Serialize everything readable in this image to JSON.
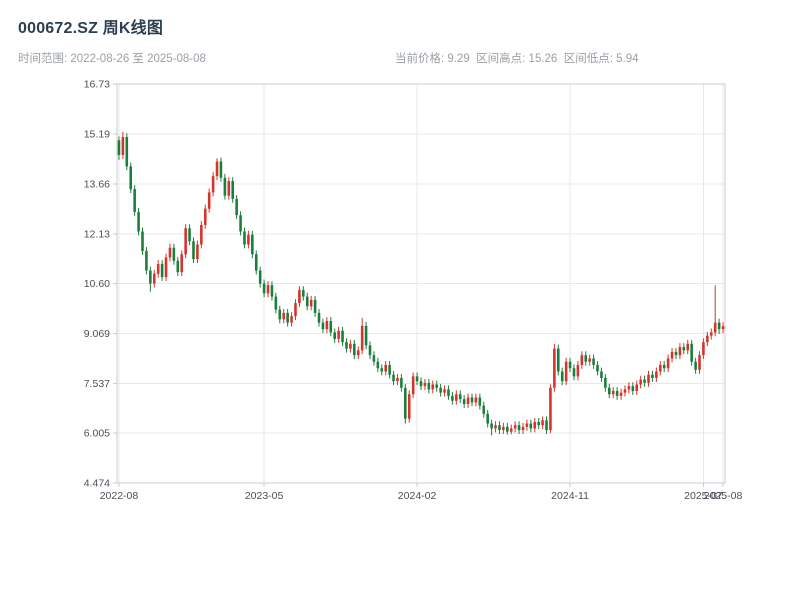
{
  "header": {
    "title": "000672.SZ 周K线图",
    "subtitle_left": "时间范围: 2022-08-26 至 2025-08-08",
    "subtitle_right": "当前价格: 9.29  区间高点: 15.26  区间低点: 5.94"
  },
  "chart_data": {
    "type": "candlestick",
    "symbol": "000672.SZ",
    "interval": "weekly",
    "start_date": "2022-08-26",
    "end_date": "2025-08-08",
    "current_price": 9.29,
    "range_high": 15.26,
    "range_low": 5.94,
    "ylim": [
      4.474,
      16.73
    ],
    "y_ticks": [
      "4.474",
      "6.005",
      "7.537",
      "9.069",
      "10.60",
      "12.13",
      "13.66",
      "15.19",
      "16.73"
    ],
    "x_ticks": [
      {
        "i": 0,
        "label": "2022-08"
      },
      {
        "i": 37,
        "label": "2023-05"
      },
      {
        "i": 76,
        "label": "2024-02"
      },
      {
        "i": 115,
        "label": "2024-11"
      },
      {
        "i": 149,
        "label": "2025-07"
      },
      {
        "i": 154,
        "label": "2025-08"
      }
    ],
    "colors": {
      "up": "#d6342b",
      "down": "#1a7f3c",
      "grid": "#e8e8ec",
      "border": "#c9ced4",
      "tick_text": "#4b4f58"
    },
    "grid": true,
    "legend": "none",
    "candles": [
      [
        15.0,
        15.12,
        14.4,
        14.55
      ],
      [
        14.55,
        15.26,
        14.43,
        15.1
      ],
      [
        15.1,
        15.22,
        14.08,
        14.2
      ],
      [
        14.2,
        14.32,
        13.38,
        13.5
      ],
      [
        13.5,
        13.62,
        12.68,
        12.8
      ],
      [
        12.8,
        12.92,
        12.08,
        12.2
      ],
      [
        12.2,
        12.32,
        11.48,
        11.6
      ],
      [
        11.6,
        11.72,
        10.88,
        11.0
      ],
      [
        11.0,
        11.12,
        10.35,
        10.6
      ],
      [
        10.6,
        11.02,
        10.48,
        10.9
      ],
      [
        10.9,
        11.32,
        10.78,
        11.2
      ],
      [
        11.2,
        11.32,
        10.68,
        10.8
      ],
      [
        10.8,
        11.52,
        10.68,
        11.4
      ],
      [
        11.4,
        11.82,
        11.28,
        11.7
      ],
      [
        11.7,
        11.82,
        11.18,
        11.3
      ],
      [
        11.3,
        11.42,
        10.83,
        10.95
      ],
      [
        10.95,
        11.62,
        10.83,
        11.5
      ],
      [
        11.5,
        12.42,
        11.38,
        12.3
      ],
      [
        12.3,
        12.42,
        11.78,
        11.9
      ],
      [
        11.9,
        12.02,
        11.23,
        11.35
      ],
      [
        11.35,
        11.92,
        11.23,
        11.8
      ],
      [
        11.8,
        12.52,
        11.68,
        12.4
      ],
      [
        12.4,
        13.02,
        12.28,
        12.9
      ],
      [
        12.9,
        13.52,
        12.78,
        13.4
      ],
      [
        13.4,
        14.02,
        13.28,
        13.9
      ],
      [
        13.9,
        14.45,
        13.78,
        14.35
      ],
      [
        14.35,
        14.47,
        13.73,
        13.85
      ],
      [
        13.85,
        13.97,
        13.18,
        13.3
      ],
      [
        13.3,
        13.87,
        13.18,
        13.75
      ],
      [
        13.75,
        13.87,
        13.08,
        13.2
      ],
      [
        13.2,
        13.32,
        12.58,
        12.7
      ],
      [
        12.7,
        12.82,
        12.08,
        12.2
      ],
      [
        12.2,
        12.32,
        11.68,
        11.8
      ],
      [
        11.8,
        12.22,
        11.68,
        12.1
      ],
      [
        12.1,
        12.22,
        11.38,
        11.5
      ],
      [
        11.5,
        11.62,
        10.88,
        11.0
      ],
      [
        11.0,
        11.12,
        10.48,
        10.6
      ],
      [
        10.6,
        10.72,
        10.18,
        10.3
      ],
      [
        10.3,
        10.67,
        10.18,
        10.55
      ],
      [
        10.55,
        10.67,
        10.08,
        10.2
      ],
      [
        10.2,
        10.32,
        9.68,
        9.8
      ],
      [
        9.8,
        9.92,
        9.38,
        9.5
      ],
      [
        9.5,
        9.82,
        9.38,
        9.7
      ],
      [
        9.7,
        9.82,
        9.28,
        9.4
      ],
      [
        9.4,
        9.72,
        9.28,
        9.6
      ],
      [
        9.6,
        10.12,
        9.48,
        10.0
      ],
      [
        10.0,
        10.52,
        9.88,
        10.4
      ],
      [
        10.4,
        10.52,
        10.08,
        10.2
      ],
      [
        10.2,
        10.32,
        9.78,
        9.9
      ],
      [
        9.9,
        10.22,
        9.78,
        10.1
      ],
      [
        10.1,
        10.22,
        9.58,
        9.7
      ],
      [
        9.7,
        9.82,
        9.28,
        9.4
      ],
      [
        9.4,
        9.52,
        9.08,
        9.2
      ],
      [
        9.2,
        9.57,
        9.08,
        9.45
      ],
      [
        9.45,
        9.57,
        8.98,
        9.1
      ],
      [
        9.1,
        9.22,
        8.78,
        8.9
      ],
      [
        8.9,
        9.27,
        8.78,
        9.15
      ],
      [
        9.15,
        9.27,
        8.68,
        8.8
      ],
      [
        8.8,
        8.92,
        8.48,
        8.6
      ],
      [
        8.6,
        8.87,
        8.48,
        8.75
      ],
      [
        8.75,
        8.87,
        8.28,
        8.4
      ],
      [
        8.4,
        8.67,
        8.28,
        8.55
      ],
      [
        8.55,
        9.55,
        8.43,
        9.3
      ],
      [
        9.3,
        9.42,
        8.58,
        8.7
      ],
      [
        8.7,
        8.82,
        8.28,
        8.4
      ],
      [
        8.4,
        8.52,
        8.08,
        8.2
      ],
      [
        8.2,
        8.32,
        7.88,
        8.0
      ],
      [
        8.0,
        8.12,
        7.78,
        7.9
      ],
      [
        7.9,
        8.22,
        7.78,
        8.1
      ],
      [
        8.1,
        8.22,
        7.68,
        7.8
      ],
      [
        7.8,
        7.92,
        7.48,
        7.6
      ],
      [
        7.6,
        7.82,
        7.48,
        7.7
      ],
      [
        7.7,
        7.82,
        7.28,
        7.4
      ],
      [
        7.4,
        7.52,
        6.3,
        6.45
      ],
      [
        6.45,
        7.32,
        6.33,
        7.2
      ],
      [
        7.2,
        7.87,
        7.08,
        7.75
      ],
      [
        7.75,
        7.87,
        7.48,
        7.6
      ],
      [
        7.6,
        7.72,
        7.33,
        7.45
      ],
      [
        7.45,
        7.67,
        7.33,
        7.55
      ],
      [
        7.55,
        7.67,
        7.23,
        7.35
      ],
      [
        7.35,
        7.62,
        7.23,
        7.5
      ],
      [
        7.5,
        7.62,
        7.28,
        7.4
      ],
      [
        7.4,
        7.52,
        7.13,
        7.25
      ],
      [
        7.25,
        7.47,
        7.13,
        7.35
      ],
      [
        7.35,
        7.47,
        7.03,
        7.15
      ],
      [
        7.15,
        7.27,
        6.88,
        7.0
      ],
      [
        7.0,
        7.32,
        6.88,
        7.2
      ],
      [
        7.2,
        7.32,
        6.93,
        7.05
      ],
      [
        7.05,
        7.17,
        6.78,
        6.9
      ],
      [
        6.9,
        7.22,
        6.78,
        7.1
      ],
      [
        7.1,
        7.22,
        6.83,
        6.95
      ],
      [
        6.95,
        7.22,
        6.83,
        7.1
      ],
      [
        7.1,
        7.22,
        6.73,
        6.85
      ],
      [
        6.85,
        6.97,
        6.48,
        6.6
      ],
      [
        6.6,
        6.72,
        6.18,
        6.3
      ],
      [
        6.3,
        6.42,
        5.94,
        6.15
      ],
      [
        6.15,
        6.37,
        6.03,
        6.25
      ],
      [
        6.25,
        6.37,
        5.98,
        6.1
      ],
      [
        6.1,
        6.32,
        5.98,
        6.2
      ],
      [
        6.2,
        6.32,
        5.96,
        6.05
      ],
      [
        6.05,
        6.27,
        5.97,
        6.15
      ],
      [
        6.15,
        6.37,
        6.03,
        6.25
      ],
      [
        6.25,
        6.37,
        5.98,
        6.1
      ],
      [
        6.1,
        6.32,
        5.98,
        6.2
      ],
      [
        6.2,
        6.42,
        6.08,
        6.3
      ],
      [
        6.3,
        6.42,
        6.03,
        6.15
      ],
      [
        6.15,
        6.47,
        6.03,
        6.35
      ],
      [
        6.35,
        6.47,
        6.13,
        6.25
      ],
      [
        6.25,
        6.52,
        6.13,
        6.4
      ],
      [
        6.4,
        6.52,
        5.98,
        6.1
      ],
      [
        6.1,
        7.5,
        6.0,
        7.4
      ],
      [
        7.4,
        8.75,
        7.28,
        8.6
      ],
      [
        8.6,
        8.72,
        7.78,
        7.9
      ],
      [
        7.9,
        8.02,
        7.48,
        7.6
      ],
      [
        7.6,
        8.32,
        7.48,
        8.2
      ],
      [
        8.2,
        8.32,
        7.88,
        8.0
      ],
      [
        8.0,
        8.12,
        7.63,
        7.75
      ],
      [
        7.75,
        8.22,
        7.63,
        8.1
      ],
      [
        8.1,
        8.52,
        7.98,
        8.4
      ],
      [
        8.4,
        8.52,
        8.08,
        8.2
      ],
      [
        8.2,
        8.42,
        8.08,
        8.3
      ],
      [
        8.3,
        8.42,
        7.98,
        8.1
      ],
      [
        8.1,
        8.22,
        7.78,
        7.9
      ],
      [
        7.9,
        8.02,
        7.58,
        7.7
      ],
      [
        7.7,
        7.82,
        7.28,
        7.4
      ],
      [
        7.4,
        7.52,
        7.08,
        7.2
      ],
      [
        7.2,
        7.42,
        7.08,
        7.3
      ],
      [
        7.3,
        7.42,
        7.03,
        7.15
      ],
      [
        7.15,
        7.37,
        7.03,
        7.25
      ],
      [
        7.25,
        7.47,
        7.13,
        7.35
      ],
      [
        7.35,
        7.57,
        7.23,
        7.45
      ],
      [
        7.45,
        7.57,
        7.18,
        7.3
      ],
      [
        7.3,
        7.62,
        7.18,
        7.5
      ],
      [
        7.5,
        7.77,
        7.38,
        7.65
      ],
      [
        7.65,
        7.77,
        7.43,
        7.55
      ],
      [
        7.55,
        7.92,
        7.43,
        7.8
      ],
      [
        7.8,
        7.92,
        7.58,
        7.7
      ],
      [
        7.7,
        8.02,
        7.58,
        7.9
      ],
      [
        7.9,
        8.22,
        7.78,
        8.1
      ],
      [
        8.1,
        8.22,
        7.88,
        8.0
      ],
      [
        8.0,
        8.42,
        7.88,
        8.3
      ],
      [
        8.3,
        8.62,
        8.18,
        8.5
      ],
      [
        8.5,
        8.62,
        8.28,
        8.4
      ],
      [
        8.4,
        8.77,
        8.28,
        8.65
      ],
      [
        8.65,
        8.77,
        8.43,
        8.55
      ],
      [
        8.55,
        8.87,
        8.43,
        8.75
      ],
      [
        8.75,
        8.87,
        8.08,
        8.2
      ],
      [
        8.2,
        8.32,
        7.83,
        7.95
      ],
      [
        7.95,
        8.52,
        7.83,
        8.4
      ],
      [
        8.4,
        8.92,
        8.28,
        8.8
      ],
      [
        8.8,
        9.12,
        8.68,
        9.0
      ],
      [
        9.0,
        9.22,
        8.88,
        9.1
      ],
      [
        9.1,
        10.55,
        8.98,
        9.4
      ],
      [
        9.4,
        9.52,
        9.05,
        9.2
      ],
      [
        9.2,
        9.41,
        9.08,
        9.29
      ]
    ]
  }
}
